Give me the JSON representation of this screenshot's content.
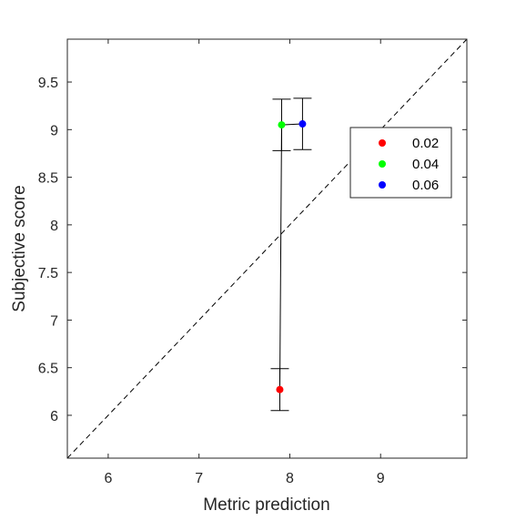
{
  "chart_data": {
    "type": "scatter",
    "title": "",
    "xlabel": "Metric prediction",
    "ylabel": "Subjective score",
    "xlim": [
      5.55,
      9.95
    ],
    "ylim": [
      5.55,
      9.95
    ],
    "x_ticks": [
      6,
      7,
      8,
      9
    ],
    "y_ticks": [
      6,
      6.5,
      7,
      7.5,
      8,
      8.5,
      9,
      9.5
    ],
    "x_tick_labels": [
      "6",
      "7",
      "8",
      "9"
    ],
    "y_tick_labels": [
      "6",
      "6.5",
      "7",
      "7.5",
      "8",
      "8.5",
      "9",
      "9.5"
    ],
    "grid": false,
    "legend_position": "upper-right",
    "identity_line": true,
    "connect_points": true,
    "series": [
      {
        "name": "0.02",
        "x": 7.89,
        "y": 6.27,
        "err_low": 6.05,
        "err_high": 6.49,
        "color": "#ff0000"
      },
      {
        "name": "0.04",
        "x": 7.91,
        "y": 9.05,
        "err_low": 8.78,
        "err_high": 9.32,
        "color": "#00ff00"
      },
      {
        "name": "0.06",
        "x": 8.14,
        "y": 9.06,
        "err_low": 8.79,
        "err_high": 9.33,
        "color": "#0000ff"
      }
    ]
  }
}
